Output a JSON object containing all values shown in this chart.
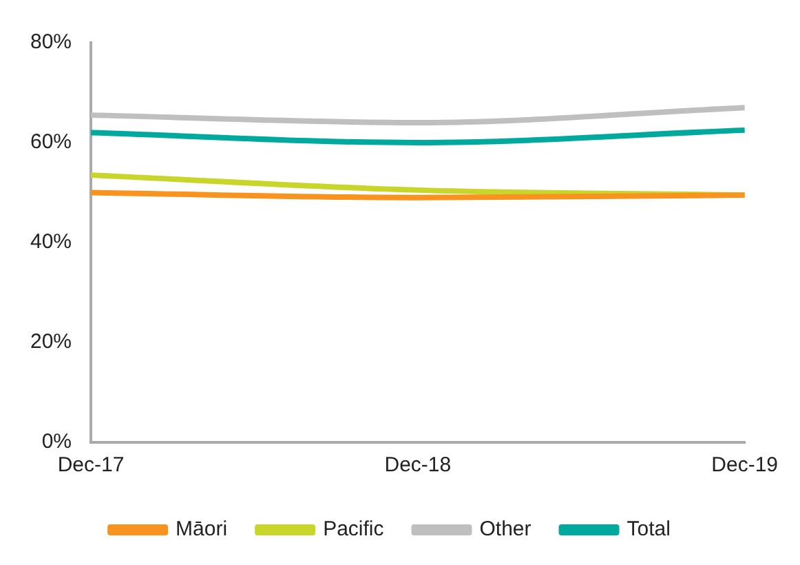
{
  "chart_data": {
    "type": "line",
    "categories": [
      "Dec-17",
      "Dec-18",
      "Dec-19"
    ],
    "series": [
      {
        "name": "Māori",
        "color": "#f7931e",
        "values": [
          50,
          49,
          49.5
        ]
      },
      {
        "name": "Pacific",
        "color": "#c8d62b",
        "values": [
          53.5,
          50.5,
          49.5
        ]
      },
      {
        "name": "Other",
        "color": "#bfbfbf",
        "values": [
          65.5,
          64,
          67
        ]
      },
      {
        "name": "Total",
        "color": "#00a99d",
        "values": [
          62,
          60,
          62.5
        ]
      }
    ],
    "ylim": [
      0,
      80
    ],
    "yticks": [
      {
        "value": 0,
        "label": "0%"
      },
      {
        "value": 20,
        "label": "20%"
      },
      {
        "value": 40,
        "label": "40%"
      },
      {
        "value": 60,
        "label": "60%"
      },
      {
        "value": 80,
        "label": "80%"
      }
    ],
    "grid": false,
    "legend": "bottom",
    "marker": "none",
    "line_style": "solid"
  }
}
